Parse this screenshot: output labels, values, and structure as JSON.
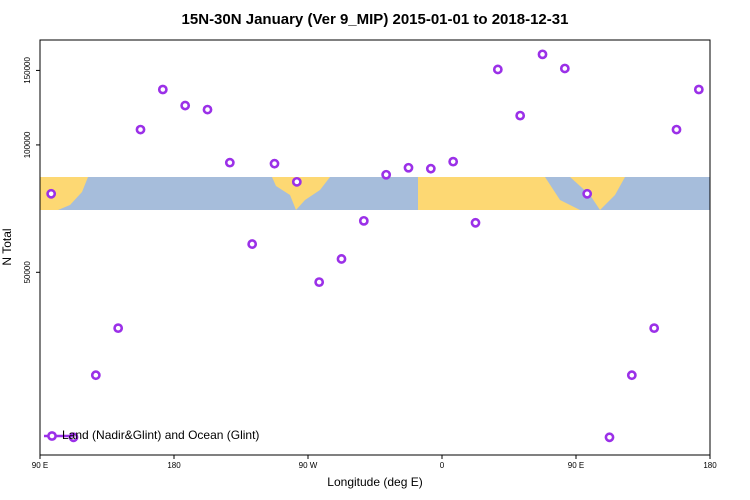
{
  "chart_data": {
    "type": "scatter",
    "title": "15N-30N January (Ver 9_MIP)   2015-01-01 to 2018-12-31",
    "xlabel": "Longitude (deg E)",
    "ylabel": "N Total",
    "series": [
      {
        "name": "Land (Nadir&Glint) and Ocean (Glint)",
        "color": "#9b30e8",
        "x": [
          97.5,
          112.5,
          127.5,
          142.5,
          157.5,
          172.5,
          187.5,
          202.5,
          217.5,
          232.5,
          247.5,
          262.5,
          277.5,
          292.5,
          307.5,
          322.5,
          337.5,
          352.5,
          367.5,
          382.5,
          397.5,
          412.5,
          427.5,
          442.5,
          457.5,
          472.5,
          487.5,
          502.5,
          517.5,
          532.5
        ],
        "values": [
          76650,
          20370,
          28560,
          36900,
          108700,
          135200,
          123900,
          121200,
          90800,
          58300,
          90300,
          81800,
          47400,
          53770,
          66150,
          85030,
          88330,
          87870,
          91300,
          65460,
          150800,
          117300,
          163700,
          151600,
          76650,
          20370,
          28560,
          36900,
          108700,
          135200
        ]
      }
    ],
    "xlim": [
      90,
      540
    ],
    "xticks": [
      {
        "value": 90,
        "label": "90 E"
      },
      180,
      {
        "value": 270,
        "label": "90 W"
      },
      {
        "value": 360,
        "label": "0"
      },
      {
        "value": 450,
        "label": "90 E"
      },
      {
        "value": 540,
        "label": "180"
      }
    ],
    "ylim": [
      18500,
      177000
    ],
    "yticks": [
      50000,
      100000,
      150000
    ],
    "ylog": true,
    "legend": "lower left"
  }
}
